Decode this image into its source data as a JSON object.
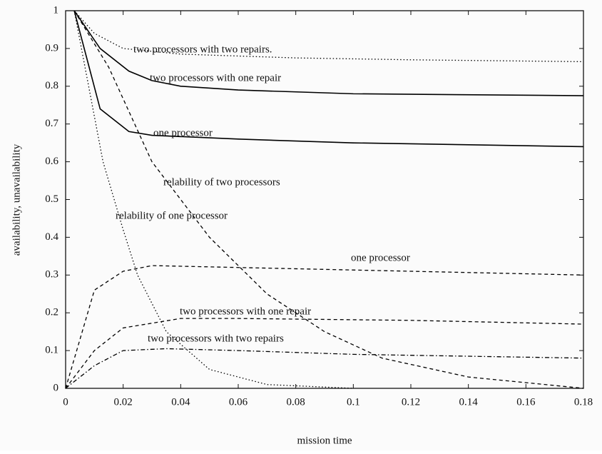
{
  "chart_data": {
    "type": "line",
    "xlabel": "mission time",
    "ylabel": "availability, unavailability",
    "xlim": [
      0,
      0.18
    ],
    "xticks": [
      0,
      0.02,
      0.04,
      0.06,
      0.08,
      0.1,
      0.12,
      0.14,
      0.16,
      0.18
    ],
    "ylim": [
      0,
      1
    ],
    "yticks": [
      0,
      0.1,
      0.2,
      0.3,
      0.4,
      0.5,
      0.6,
      0.7,
      0.8,
      0.9,
      1
    ],
    "grid": false,
    "series": [
      {
        "name": "two processors with two repairs.",
        "color": "#000000",
        "style": "dotted",
        "x": [
          0.003,
          0.01,
          0.02,
          0.04,
          0.08,
          0.12,
          0.18
        ],
        "values": [
          1,
          0.94,
          0.9,
          0.885,
          0.875,
          0.87,
          0.865
        ]
      },
      {
        "name": "two processors with one repair",
        "color": "#000000",
        "style": "solid",
        "x": [
          0.003,
          0.012,
          0.022,
          0.03,
          0.04,
          0.06,
          0.1,
          0.18
        ],
        "values": [
          1,
          0.9,
          0.84,
          0.815,
          0.8,
          0.79,
          0.78,
          0.775
        ]
      },
      {
        "name": "one processor",
        "color": "#000000",
        "style": "solid",
        "x": [
          0.003,
          0.012,
          0.022,
          0.03,
          0.06,
          0.1,
          0.18
        ],
        "values": [
          1,
          0.74,
          0.68,
          0.67,
          0.66,
          0.65,
          0.64
        ]
      },
      {
        "name": "relability of two processors",
        "color": "#000000",
        "style": "dashed",
        "x": [
          0.003,
          0.015,
          0.03,
          0.05,
          0.07,
          0.09,
          0.11,
          0.14,
          0.18
        ],
        "values": [
          1,
          0.85,
          0.6,
          0.4,
          0.25,
          0.15,
          0.08,
          0.03,
          0
        ]
      },
      {
        "name": "relability of one processor",
        "color": "#000000",
        "style": "dotted",
        "x": [
          0.003,
          0.008,
          0.013,
          0.02,
          0.025,
          0.035,
          0.05,
          0.07,
          0.1
        ],
        "values": [
          1,
          0.8,
          0.6,
          0.42,
          0.3,
          0.15,
          0.05,
          0.01,
          0
        ]
      },
      {
        "name": "one processor",
        "color": "#000000",
        "style": "dashed",
        "x": [
          0,
          0.01,
          0.02,
          0.03,
          0.06,
          0.12,
          0.18
        ],
        "values": [
          0,
          0.26,
          0.31,
          0.325,
          0.32,
          0.31,
          0.3
        ]
      },
      {
        "name": "two processors with one repair",
        "color": "#000000",
        "style": "dashed",
        "x": [
          0,
          0.01,
          0.02,
          0.04,
          0.06,
          0.12,
          0.18
        ],
        "values": [
          0,
          0.1,
          0.16,
          0.185,
          0.185,
          0.18,
          0.17
        ]
      },
      {
        "name": "two processors with two repairs",
        "color": "#000000",
        "style": "dashdot",
        "x": [
          0,
          0.01,
          0.02,
          0.035,
          0.06,
          0.1,
          0.18
        ],
        "values": [
          0,
          0.06,
          0.1,
          0.105,
          0.1,
          0.09,
          0.08
        ]
      }
    ]
  }
}
